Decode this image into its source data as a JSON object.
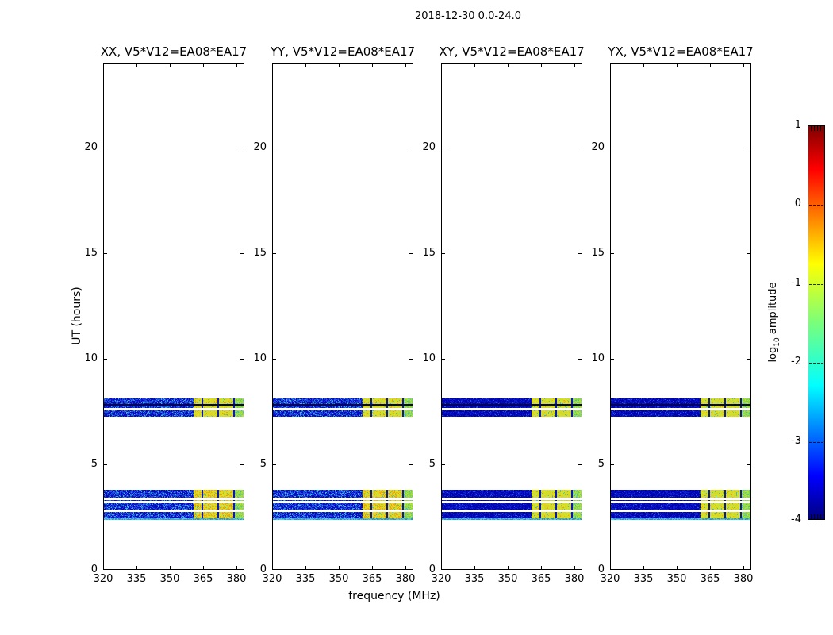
{
  "figure": {
    "background": "#ffffff",
    "text_color": "#000000"
  },
  "chart_data": {
    "type": "heatmap",
    "title": "2018-12-30 0.0-24.0",
    "panels": [
      {
        "id": "xx",
        "title": "XX, V5*V12=EA08*EA17",
        "style": "bright"
      },
      {
        "id": "yy",
        "title": "YY, V5*V12=EA08*EA17",
        "style": "bright"
      },
      {
        "id": "xy",
        "title": "XY, V5*V12=EA08*EA17",
        "style": "dark"
      },
      {
        "id": "yx",
        "title": "YX, V5*V12=EA08*EA17",
        "style": "dark"
      }
    ],
    "xaxis": {
      "label": "frequency (MHz)",
      "min": 320,
      "max": 383.6,
      "ticks": [
        320,
        335,
        350,
        365,
        380
      ],
      "tick_labels": [
        "320",
        "335",
        "350",
        "365",
        "380"
      ]
    },
    "yaxis": {
      "label": "UT (hours)",
      "min": 0,
      "max": 24,
      "ticks": [
        0,
        5,
        10,
        15,
        20
      ],
      "tick_labels": [
        "0",
        "5",
        "10",
        "15",
        "20"
      ]
    },
    "colorbar": {
      "label_base": "log",
      "label_sub": "10",
      "label_rest": " amplitude",
      "min": -4,
      "max": 1,
      "ticks": [
        1,
        0,
        -1,
        -2,
        -3,
        -4
      ],
      "tick_labels": [
        "1",
        "0",
        "-1",
        "-2",
        "-3",
        "-4"
      ],
      "colormap": "jet",
      "gradient": [
        {
          "pos": 0.0,
          "color": "#000080"
        },
        {
          "pos": 0.11,
          "color": "#0000ff"
        },
        {
          "pos": 0.34,
          "color": "#00ffff"
        },
        {
          "pos": 0.5,
          "color": "#7aff7a"
        },
        {
          "pos": 0.65,
          "color": "#ffff00"
        },
        {
          "pos": 0.89,
          "color": "#ff0000"
        },
        {
          "pos": 1.0,
          "color": "#800000"
        }
      ]
    },
    "background_value": "blank/white (no data outside bands)",
    "bands": [
      {
        "group": "upper",
        "ut_range": [
          7.25,
          8.11
        ],
        "rows": [
          {
            "t0": 7.85,
            "t1": 8.11,
            "kind": "noise"
          },
          {
            "t0": 7.78,
            "t1": 7.85,
            "kind": "dark"
          },
          {
            "t0": 7.68,
            "t1": 7.78,
            "kind": "noise"
          },
          {
            "t0": 7.55,
            "t1": 7.68,
            "kind": "gap"
          },
          {
            "t0": 7.25,
            "t1": 7.55,
            "kind": "noise"
          }
        ]
      },
      {
        "group": "lower",
        "ut_range": [
          2.37,
          3.79
        ],
        "rows": [
          {
            "t0": 3.42,
            "t1": 3.79,
            "kind": "noise"
          },
          {
            "t0": 3.32,
            "t1": 3.42,
            "kind": "gap"
          },
          {
            "t0": 3.25,
            "t1": 3.32,
            "kind": "noise"
          },
          {
            "t0": 3.17,
            "t1": 3.25,
            "kind": "gap"
          },
          {
            "t0": 2.84,
            "t1": 3.17,
            "kind": "noise"
          },
          {
            "t0": 2.74,
            "t1": 2.84,
            "kind": "gap"
          },
          {
            "t0": 2.44,
            "t1": 2.74,
            "kind": "noise"
          },
          {
            "t0": 2.37,
            "t1": 2.44,
            "kind": "cyan"
          }
        ]
      }
    ],
    "freq_segments": [
      {
        "f0": 320.0,
        "f1": 360.4,
        "kind": "noise"
      },
      {
        "f0": 360.4,
        "f1": 364.2,
        "kind": "bright"
      },
      {
        "f0": 364.2,
        "f1": 365.0,
        "kind": "sep"
      },
      {
        "f0": 365.0,
        "f1": 371.3,
        "kind": "bright"
      },
      {
        "f0": 371.3,
        "f1": 372.1,
        "kind": "sep"
      },
      {
        "f0": 372.1,
        "f1": 378.4,
        "kind": "bright"
      },
      {
        "f0": 378.4,
        "f1": 379.2,
        "kind": "sep"
      },
      {
        "f0": 379.2,
        "f1": 383.6,
        "kind": "bright2"
      }
    ],
    "palettes": {
      "bright_blue": [
        "#0008c0",
        "#0a14d2",
        "#1e32dc",
        "#2846e6",
        "#1260d0",
        "#0a0ab4"
      ],
      "bright_blue_speck": [
        "#2090dc",
        "#40b4e6"
      ],
      "dark_blue": [
        "#0006b0",
        "#0410c8",
        "#1020d0",
        "#0000a8"
      ],
      "dark_blue_speck": [
        "#1e5ac8"
      ],
      "yellow": [
        "#d8dc28",
        "#cde232",
        "#e0d21e",
        "#c3dc3c",
        "#d7e61e"
      ],
      "orange": [
        "#f0b414",
        "#eda81e",
        "#f5a000"
      ],
      "green2": [
        "#a0dc46",
        "#90d750",
        "#b4e632",
        "#7dcd69"
      ],
      "cyan_speck": [
        "#46c8b4",
        "#32bedc"
      ],
      "sep": [
        "#0a14b4",
        "#0c1eaa",
        "#0818c0"
      ],
      "cyan_row": [
        "#28b4dc",
        "#46d2e6",
        "#1e96d2"
      ],
      "dark_row": [
        "#000428",
        "#02083c",
        "#000850"
      ]
    }
  }
}
